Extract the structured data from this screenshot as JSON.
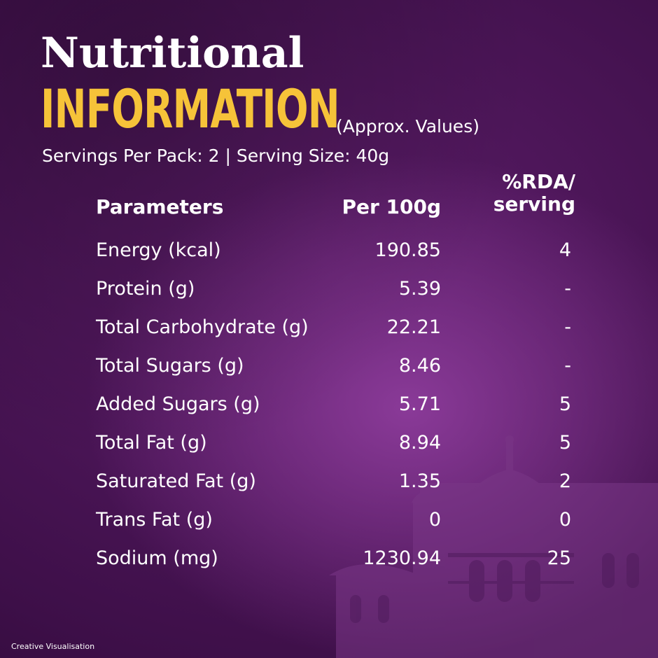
{
  "header": {
    "title_line1": "Nutritional",
    "title_line2": "INFORMATION",
    "approx_note": "(Approx. Values)",
    "servings": "Servings Per Pack: 2 | Serving Size: 40g"
  },
  "table": {
    "headers": {
      "parameters": "Parameters",
      "per100": "Per 100g",
      "rda_line1": "%RDA/",
      "rda_line2": "serving"
    },
    "rows": [
      {
        "name": "Energy (kcal)",
        "per100": "190.85",
        "rda": "4"
      },
      {
        "name": "Protein (g)",
        "per100": "5.39",
        "rda": "-"
      },
      {
        "name": "Total Carbohydrate (g)",
        "per100": "22.21",
        "rda": "-"
      },
      {
        "name": "Total Sugars (g)",
        "per100": "8.46",
        "rda": "-"
      },
      {
        "name": "Added Sugars (g)",
        "per100": "5.71",
        "rda": "5"
      },
      {
        "name": "Total Fat (g)",
        "per100": "8.94",
        "rda": "5"
      },
      {
        "name": "Saturated Fat (g)",
        "per100": "1.35",
        "rda": "2"
      },
      {
        "name": "Trans Fat (g)",
        "per100": "0",
        "rda": "0"
      },
      {
        "name": "Sodium (mg)",
        "per100": "1230.94",
        "rda": "25"
      }
    ]
  },
  "footer": {
    "note": "Creative Visualisation"
  },
  "colors": {
    "accent_yellow": "#f6c339",
    "background_purple": "#4a1556",
    "text_white": "#ffffff"
  }
}
